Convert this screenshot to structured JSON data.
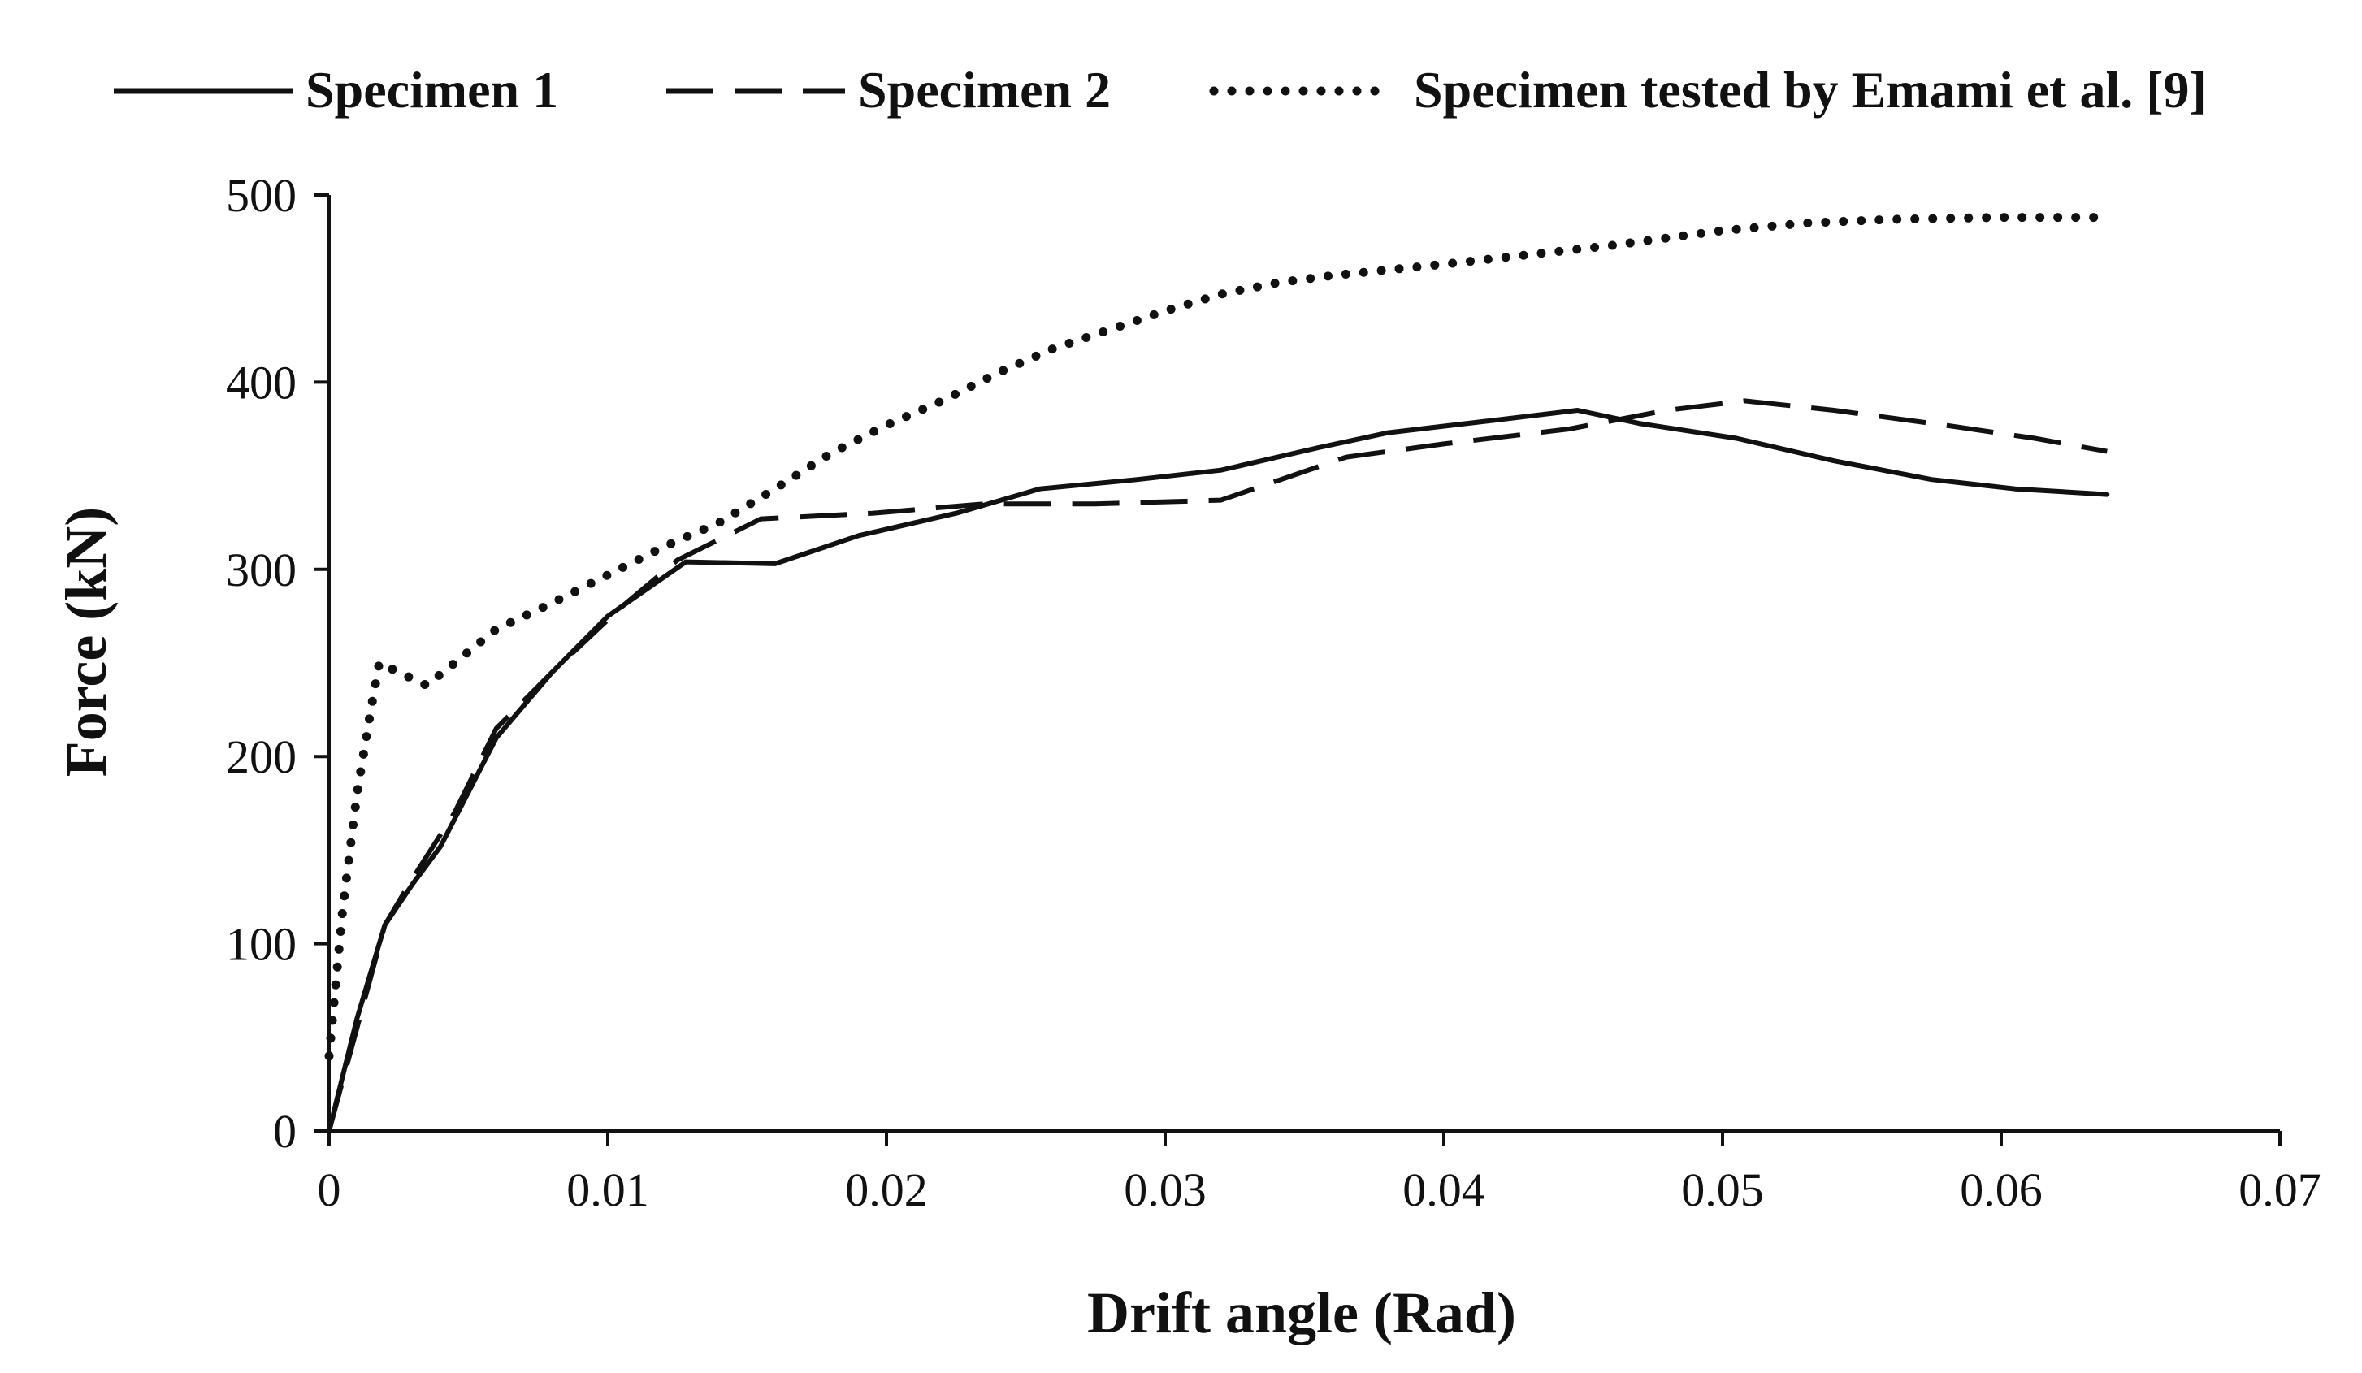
{
  "chart_data": {
    "type": "line",
    "title": "",
    "xlabel": "Drift angle (Rad)",
    "ylabel": "Force (kN)",
    "xlim": [
      0,
      0.07
    ],
    "ylim": [
      0,
      500
    ],
    "x_ticks": [
      0,
      0.01,
      0.02,
      0.03,
      0.04,
      0.05,
      0.06,
      0.07
    ],
    "x_tick_labels": [
      "0",
      "0.01",
      "0.02",
      "0.03",
      "0.04",
      "0.05",
      "0.06",
      "0.07"
    ],
    "y_ticks": [
      0,
      100,
      200,
      300,
      400,
      500
    ],
    "y_tick_labels": [
      "0",
      "100",
      "200",
      "300",
      "400",
      "500"
    ],
    "grid": false,
    "legend_position": "top",
    "series": [
      {
        "name": "Specimen 1",
        "style": "solid",
        "color": "#111111",
        "x": [
          0,
          0.001,
          0.002,
          0.003,
          0.004,
          0.006,
          0.008,
          0.01,
          0.0128,
          0.016,
          0.019,
          0.0225,
          0.0255,
          0.029,
          0.032,
          0.0355,
          0.038,
          0.042,
          0.0448,
          0.047,
          0.0505,
          0.054,
          0.0575,
          0.0605,
          0.0638
        ],
        "y": [
          0,
          60,
          110,
          132,
          152,
          210,
          245,
          275,
          304,
          303,
          318,
          330,
          343,
          348,
          353,
          365,
          373,
          380,
          385,
          378,
          370,
          358,
          348,
          343,
          340
        ]
      },
      {
        "name": "Specimen 2",
        "style": "dashed",
        "color": "#111111",
        "x": [
          0,
          0.001,
          0.002,
          0.003,
          0.0045,
          0.006,
          0.008,
          0.0105,
          0.0125,
          0.0155,
          0.0195,
          0.0235,
          0.0275,
          0.032,
          0.0365,
          0.04,
          0.0445,
          0.048,
          0.0508,
          0.054,
          0.058,
          0.0612,
          0.0638
        ],
        "y": [
          0,
          55,
          110,
          135,
          170,
          215,
          245,
          280,
          305,
          327,
          330,
          335,
          335,
          337,
          360,
          367,
          375,
          385,
          390,
          385,
          377,
          370,
          363
        ]
      },
      {
        "name": "Specimen tested by Emami et al. [9]",
        "style": "dotted",
        "color": "#111111",
        "x": [
          0,
          0.0005,
          0.001,
          0.0015,
          0.0018,
          0.0025,
          0.0035,
          0.0045,
          0.006,
          0.008,
          0.01,
          0.012,
          0.014,
          0.016,
          0.018,
          0.02,
          0.022,
          0.024,
          0.026,
          0.028,
          0.03,
          0.032,
          0.034,
          0.036,
          0.038,
          0.04,
          0.043,
          0.046,
          0.05,
          0.053,
          0.056,
          0.06,
          0.0638
        ],
        "y": [
          40,
          120,
          180,
          225,
          250,
          245,
          238,
          250,
          268,
          282,
          297,
          312,
          325,
          343,
          362,
          377,
          390,
          405,
          418,
          428,
          438,
          447,
          453,
          457,
          460,
          463,
          468,
          473,
          481,
          485,
          487,
          488,
          488
        ]
      }
    ]
  }
}
